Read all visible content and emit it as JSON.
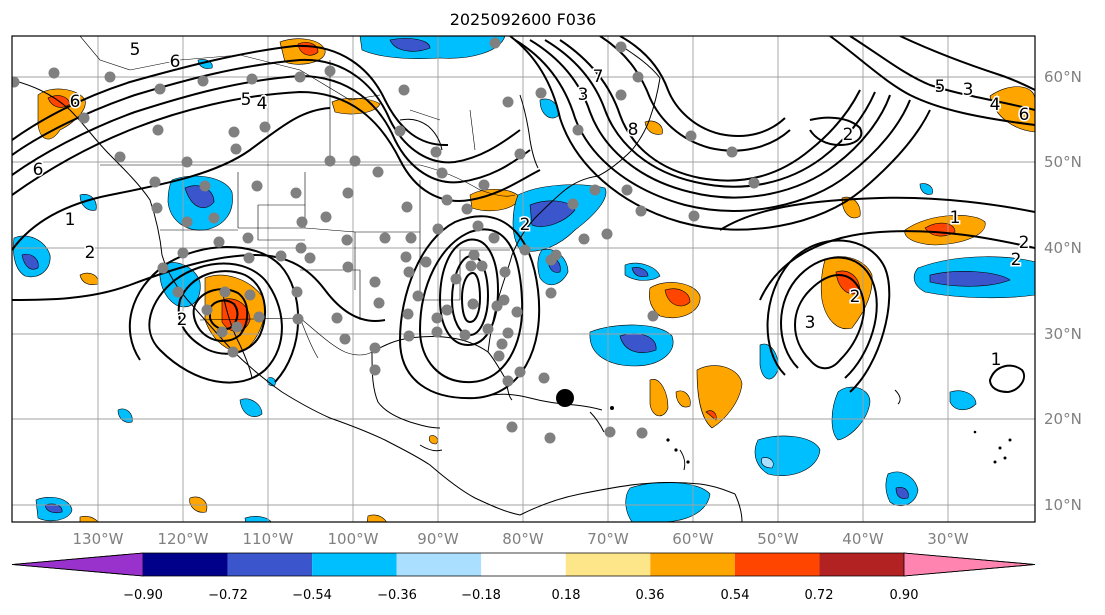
{
  "title": "2025092600 F036",
  "lat_labels": [
    "60°N",
    "50°N",
    "40°N",
    "30°N",
    "20°N",
    "10°N"
  ],
  "lon_labels": [
    "130°W",
    "120°W",
    "110°W",
    "100°W",
    "90°W",
    "80°W",
    "70°W",
    "60°W",
    "50°W",
    "40°W",
    "30°W"
  ],
  "colorbar": {
    "colors": [
      "#9932cc",
      "#00008b",
      "#3b55cc",
      "#00bfff",
      "#aadfff",
      "#ffffff",
      "#fde68a",
      "#ffa500",
      "#ff4500",
      "#b22222",
      "#ff85b0"
    ],
    "labels": [
      "−0.90",
      "−0.72",
      "−0.54",
      "−0.36",
      "−0.18",
      "0.18",
      "0.36",
      "0.54",
      "0.72",
      "0.90"
    ]
  },
  "contour_labels": [
    "5",
    "6",
    "5",
    "4",
    "6",
    "1",
    "2",
    "2",
    "3",
    "7",
    "8",
    "2",
    "6",
    "2",
    "1",
    "2",
    "3",
    "2",
    "1",
    "5",
    "3",
    "4",
    "6",
    "2"
  ],
  "marker_colors": {
    "station": "#808080",
    "center": "#000000"
  }
}
